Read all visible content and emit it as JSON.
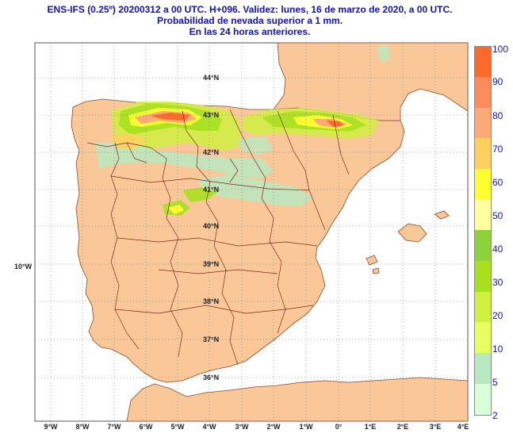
{
  "header": {
    "line1": "ENS-IFS (0.25º) 20200312 a 00 UTC.  H+096. Validez: lunes, 16 de marzo de 2020,  a  00 UTC.",
    "line2": "Probabilidad de nevada superior a 1 mm.",
    "line3": "En las 24 horas anteriores."
  },
  "legend": {
    "labels": [
      "100",
      "90",
      "80",
      "70",
      "60",
      "50",
      "40",
      "30",
      "20",
      "10",
      "5",
      "2"
    ],
    "colors": [
      "#ff6a2a",
      "#ff8a5a",
      "#ffa878",
      "#ffd060",
      "#ffff30",
      "#ffffa0",
      "#8dd23a",
      "#a8e020",
      "#d0f040",
      "#e8ff60",
      "#b8e8c0",
      "#d8ffd8"
    ]
  },
  "axes": {
    "lon_labels": [
      "9°W",
      "8°W",
      "7°W",
      "6°W",
      "5°W",
      "4°W",
      "3°W",
      "2°W",
      "1°W",
      "0°",
      "1°E",
      "2°E",
      "3°E",
      "4°E"
    ],
    "lat_labels": [
      "44°N",
      "43°N",
      "42°N",
      "41°N",
      "40°N",
      "39°N",
      "38°N",
      "37°N",
      "36°N"
    ],
    "lon_side_label": "10°W"
  },
  "colors": {
    "land": "#fac898",
    "sea": "#ffffff",
    "border": "#7a2a1a"
  }
}
